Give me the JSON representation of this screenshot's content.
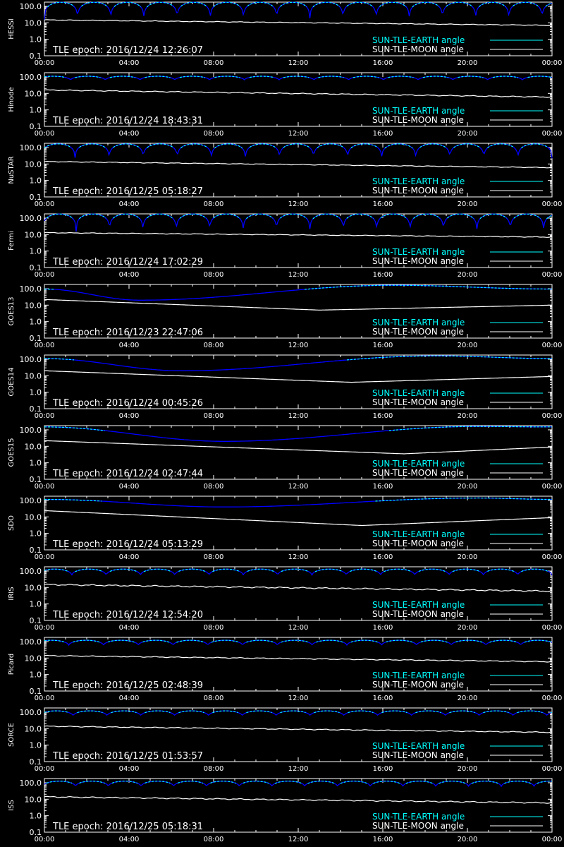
{
  "legend": {
    "earth_label": "SUN-TLE-EARTH angle",
    "moon_label": "SUN-TLE-MOON angle"
  },
  "colors": {
    "background": "#000000",
    "axes": "#ffffff",
    "earth_visible": "#00ffff",
    "earth_occulted": "#0000ff",
    "moon": "#ffffff"
  },
  "chart_data": [
    {
      "type": "line",
      "ylabel": "HESSI",
      "annotation": "TLE epoch: 2016/12/24 12:26:07",
      "x_ticks": [
        "00:00",
        "04:00",
        "08:00",
        "12:00",
        "16:00",
        "20:00",
        "00:00"
      ],
      "y_ticks": [
        "0.1",
        "1.0",
        "10.0",
        "100.0"
      ],
      "yscale": "log",
      "ylim": [
        0.1,
        180
      ],
      "xlim_hours": [
        0,
        24
      ],
      "series": [
        {
          "name": "SUN-TLE-EARTH angle",
          "shape": "orbital",
          "orbits": 15.3,
          "phase": 0.0,
          "min": 15,
          "max": 175
        },
        {
          "name": "SUN-TLE-MOON angle",
          "start": 15,
          "end": 7,
          "wiggle": 0.03
        }
      ]
    },
    {
      "type": "line",
      "ylabel": "Hinode",
      "annotation": "TLE epoch: 2016/12/24 18:43:31",
      "x_ticks": [
        "00:00",
        "04:00",
        "08:00",
        "12:00",
        "16:00",
        "20:00",
        "00:00"
      ],
      "y_ticks": [
        "0.1",
        "1.0",
        "10.0",
        "100.0"
      ],
      "yscale": "log",
      "ylim": [
        0.1,
        180
      ],
      "series": [
        {
          "name": "SUN-TLE-EARTH angle",
          "shape": "orbital",
          "orbits": 14.6,
          "phase": 0.25,
          "min": 65,
          "max": 110
        },
        {
          "name": "SUN-TLE-MOON angle",
          "start": 16,
          "end": 6,
          "wiggle": 0.04
        }
      ]
    },
    {
      "type": "line",
      "ylabel": "NuSTAR",
      "annotation": "TLE epoch: 2016/12/25 05:18:27",
      "x_ticks": [
        "00:00",
        "04:00",
        "08:00",
        "12:00",
        "16:00",
        "20:00",
        "00:00"
      ],
      "y_ticks": [
        "0.1",
        "1.0",
        "10.0",
        "100.0"
      ],
      "yscale": "log",
      "ylim": [
        0.1,
        180
      ],
      "series": [
        {
          "name": "SUN-TLE-EARTH angle",
          "shape": "orbital",
          "orbits": 14.9,
          "phase": 0.1,
          "min": 22,
          "max": 165
        },
        {
          "name": "SUN-TLE-MOON angle",
          "start": 14,
          "end": 6,
          "wiggle": 0.03
        }
      ]
    },
    {
      "type": "line",
      "ylabel": "Fermi",
      "annotation": "TLE epoch: 2016/12/24 17:02:29",
      "x_ticks": [
        "00:00",
        "04:00",
        "08:00",
        "12:00",
        "16:00",
        "20:00",
        "00:00"
      ],
      "y_ticks": [
        "0.1",
        "1.0",
        "10.0",
        "100.0"
      ],
      "yscale": "log",
      "ylim": [
        0.1,
        180
      ],
      "series": [
        {
          "name": "SUN-TLE-EARTH angle",
          "shape": "orbital",
          "orbits": 15.2,
          "phase": 0.05,
          "min": 15,
          "max": 175
        },
        {
          "name": "SUN-TLE-MOON angle",
          "start": 13,
          "end": 7,
          "wiggle": 0.03
        }
      ]
    },
    {
      "type": "line",
      "ylabel": "GOES13",
      "annotation": "TLE epoch: 2016/12/23 22:47:06",
      "x_ticks": [
        "00:00",
        "04:00",
        "08:00",
        "12:00",
        "16:00",
        "20:00",
        "00:00"
      ],
      "y_ticks": [
        "0.1",
        "1.0",
        "10.0",
        "100.0"
      ],
      "yscale": "log",
      "ylim": [
        0.1,
        180
      ],
      "series": [
        {
          "name": "SUN-TLE-EARTH angle",
          "shape": "geo",
          "min_hour": 4.5,
          "min": 20,
          "max_hour": 16.5,
          "max": 160,
          "end": 95
        },
        {
          "name": "SUN-TLE-MOON angle",
          "shape": "vee",
          "start": 22,
          "min_hour": 13,
          "min": 5,
          "end": 10
        }
      ]
    },
    {
      "type": "line",
      "ylabel": "GOES14",
      "annotation": "TLE epoch: 2016/12/24 00:45:26",
      "x_ticks": [
        "00:00",
        "04:00",
        "08:00",
        "12:00",
        "16:00",
        "20:00",
        "00:00"
      ],
      "y_ticks": [
        "0.1",
        "1.0",
        "10.0",
        "100.0"
      ],
      "yscale": "log",
      "ylim": [
        0.1,
        180
      ],
      "series": [
        {
          "name": "SUN-TLE-EARTH angle",
          "shape": "geo",
          "min_hour": 6.5,
          "min": 20,
          "max_hour": 18.5,
          "max": 160,
          "end": 110
        },
        {
          "name": "SUN-TLE-MOON angle",
          "shape": "vee",
          "start": 20,
          "min_hour": 14.5,
          "min": 4,
          "end": 9
        }
      ]
    },
    {
      "type": "line",
      "ylabel": "GOES15",
      "annotation": "TLE epoch: 2016/12/24 02:47:44",
      "x_ticks": [
        "00:00",
        "04:00",
        "08:00",
        "12:00",
        "16:00",
        "20:00",
        "00:00"
      ],
      "y_ticks": [
        "0.1",
        "1.0",
        "10.0",
        "100.0"
      ],
      "yscale": "log",
      "ylim": [
        0.1,
        180
      ],
      "series": [
        {
          "name": "SUN-TLE-EARTH angle",
          "shape": "geo",
          "min_hour": 8.5,
          "min": 20,
          "max_hour": 20.5,
          "max": 160,
          "end": 150
        },
        {
          "name": "SUN-TLE-MOON angle",
          "shape": "vee",
          "start": 22,
          "min_hour": 17,
          "min": 3.5,
          "end": 9
        }
      ]
    },
    {
      "type": "line",
      "ylabel": "SDO",
      "annotation": "TLE epoch: 2016/12/24 05:13:29",
      "x_ticks": [
        "00:00",
        "04:00",
        "08:00",
        "12:00",
        "16:00",
        "20:00",
        "00:00"
      ],
      "y_ticks": [
        "0.1",
        "1.0",
        "10.0",
        "100.0"
      ],
      "yscale": "log",
      "ylim": [
        0.1,
        180
      ],
      "series": [
        {
          "name": "SUN-TLE-EARTH angle",
          "shape": "geo",
          "min_hour": 8.5,
          "min": 40,
          "max_hour": 20.5,
          "max": 140,
          "end": 115
        },
        {
          "name": "SUN-TLE-MOON angle",
          "shape": "vee",
          "start": 24,
          "min_hour": 15,
          "min": 3,
          "end": 9
        }
      ]
    },
    {
      "type": "line",
      "ylabel": "IRIS",
      "annotation": "TLE epoch: 2016/12/24 12:54:20",
      "x_ticks": [
        "00:00",
        "04:00",
        "08:00",
        "12:00",
        "16:00",
        "20:00",
        "00:00"
      ],
      "y_ticks": [
        "0.1",
        "1.0",
        "10.0",
        "100.0"
      ],
      "yscale": "log",
      "ylim": [
        0.1,
        180
      ],
      "series": [
        {
          "name": "SUN-TLE-EARTH angle",
          "shape": "orbital",
          "orbits": 14.8,
          "phase": 0.2,
          "min": 55,
          "max": 130
        },
        {
          "name": "SUN-TLE-MOON angle",
          "start": 15,
          "end": 6,
          "wiggle": 0.06
        }
      ]
    },
    {
      "type": "line",
      "ylabel": "Picard",
      "annotation": "TLE epoch: 2016/12/25 02:48:39",
      "x_ticks": [
        "00:00",
        "04:00",
        "08:00",
        "12:00",
        "16:00",
        "20:00",
        "00:00"
      ],
      "y_ticks": [
        "0.1",
        "1.0",
        "10.0",
        "100.0"
      ],
      "yscale": "log",
      "ylim": [
        0.1,
        180
      ],
      "series": [
        {
          "name": "SUN-TLE-EARTH angle",
          "shape": "orbital",
          "orbits": 14.6,
          "phase": 0.3,
          "min": 60,
          "max": 120
        },
        {
          "name": "SUN-TLE-MOON angle",
          "start": 14,
          "end": 6,
          "wiggle": 0.04
        }
      ]
    },
    {
      "type": "line",
      "ylabel": "SORCE",
      "annotation": "TLE epoch: 2016/12/25 01:53:57",
      "x_ticks": [
        "00:00",
        "04:00",
        "08:00",
        "12:00",
        "16:00",
        "20:00",
        "00:00"
      ],
      "y_ticks": [
        "0.1",
        "1.0",
        "10.0",
        "100.0"
      ],
      "yscale": "log",
      "ylim": [
        0.1,
        180
      ],
      "series": [
        {
          "name": "SUN-TLE-EARTH angle",
          "shape": "orbital",
          "orbits": 15.0,
          "phase": 0.15,
          "min": 60,
          "max": 120
        },
        {
          "name": "SUN-TLE-MOON angle",
          "start": 14,
          "end": 6,
          "wiggle": 0.04
        }
      ]
    },
    {
      "type": "line",
      "ylabel": "ISS",
      "annotation": "TLE epoch: 2016/12/25 05:18:31",
      "x_ticks": [
        "00:00",
        "04:00",
        "08:00",
        "12:00",
        "16:00",
        "20:00",
        "00:00"
      ],
      "y_ticks": [
        "0.1",
        "1.0",
        "10.0",
        "100.0"
      ],
      "yscale": "log",
      "ylim": [
        0.1,
        180
      ],
      "series": [
        {
          "name": "SUN-TLE-EARTH angle",
          "shape": "orbital",
          "orbits": 15.5,
          "phase": 0.05,
          "min": 60,
          "max": 125
        },
        {
          "name": "SUN-TLE-MOON angle",
          "start": 14,
          "end": 6,
          "wiggle": 0.05
        }
      ]
    }
  ]
}
